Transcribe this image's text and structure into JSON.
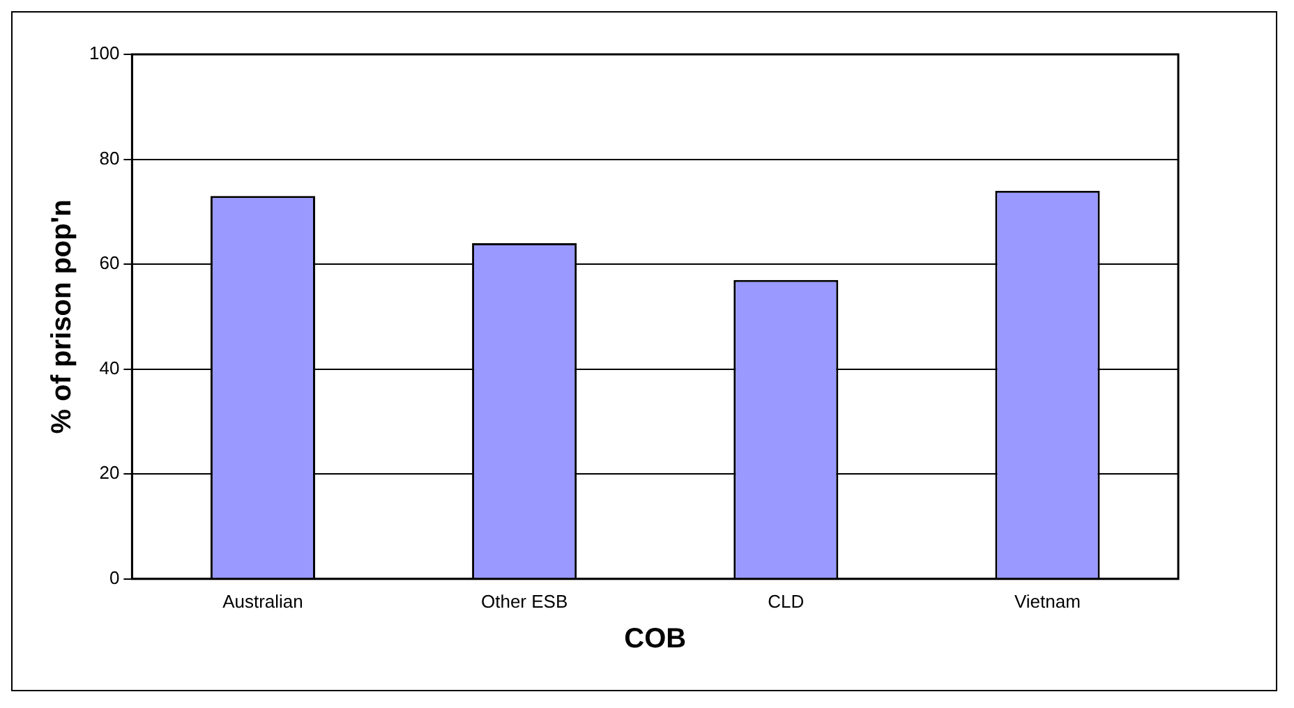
{
  "chart_data": {
    "type": "bar",
    "xlabel": "COB",
    "ylabel": "% of prison pop'n",
    "categories": [
      "Australian",
      "Other ESB",
      "CLD",
      "Vietnam"
    ],
    "values": [
      73,
      64,
      57,
      74
    ],
    "color": "#9999ff",
    "ylim": [
      0,
      100
    ],
    "yticks": [
      0,
      20,
      40,
      60,
      80,
      100
    ],
    "grid": "y",
    "legend": false
  }
}
